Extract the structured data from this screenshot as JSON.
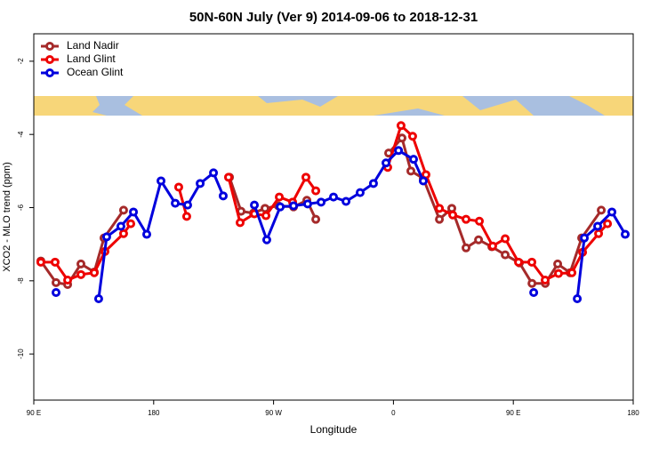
{
  "chart_data": {
    "type": "line",
    "title": "50N-60N July (Ver 9)   2014-09-06 to 2018-12-31",
    "x_label": "Longitude",
    "y_label": "XCO2 - MLO trend (ppm)",
    "xlim": [
      90,
      540
    ],
    "ylim": [
      -11.26,
      -1.25
    ],
    "xticks": [
      {
        "value": 90,
        "label": "90 E"
      },
      180,
      {
        "value": 270,
        "label": "90 W"
      },
      {
        "value": 360,
        "label": "0"
      },
      {
        "value": 450,
        "label": "90 E"
      },
      {
        "value": 540,
        "label": "180"
      }
    ],
    "yticks": [
      -2,
      -4,
      -6,
      -8,
      -10
    ],
    "legend": "top-left",
    "series": [
      {
        "name": "Land Nadir",
        "color": "#a52a2a",
        "x": [
          95.3,
          106.7,
          115.4,
          125.4,
          135.4,
          142.7,
          157.4,
          null,
          236.9,
          245.6,
          254.9,
          263.6,
          273.6,
          285,
          295,
          301.7,
          null,
          356.4,
          366.4,
          373.1,
          382.4,
          394.5,
          403.8,
          414.5,
          423.9,
          433.9,
          443.9,
          454.6,
          464,
          474,
          483.3,
          492.6,
          501.3,
          516
        ],
        "values": [
          -7.46,
          -8.05,
          -8.1,
          -7.54,
          -7.76,
          -6.83,
          -6.07,
          null,
          -5.17,
          -6.1,
          -6.15,
          -6.02,
          -5.95,
          -5.98,
          -5.8,
          -6.32,
          null,
          -4.51,
          -4.1,
          -5.0,
          -5.2,
          -6.32,
          -6.02,
          -7.1,
          -6.88,
          -7.07,
          -7.29,
          -7.51,
          -8.07,
          -8.07,
          -7.54,
          -7.78,
          -6.83,
          -6.07
        ]
      },
      {
        "name": "Land Glint",
        "color": "#ee0000",
        "x": [
          95.3,
          106,
          115.4,
          125.4,
          135.4,
          143.4,
          157.4,
          162.8,
          null,
          198.8,
          204.8,
          null,
          236.2,
          244.9,
          255.6,
          264.3,
          274.3,
          284.3,
          294.3,
          301.7,
          null,
          355.7,
          365.7,
          374.4,
          384.4,
          394.5,
          404.5,
          414.5,
          424.5,
          434.5,
          443.9,
          453.9,
          463.9,
          473.9,
          483.9,
          494,
          502,
          514,
          520.7
        ],
        "values": [
          -7.49,
          -7.49,
          -7.98,
          -7.83,
          -7.78,
          -7.2,
          -6.71,
          -6.44,
          null,
          -5.44,
          -6.24,
          null,
          -5.17,
          -6.41,
          -6.17,
          -6.22,
          -5.71,
          -5.85,
          -5.17,
          -5.54,
          null,
          -4.9,
          -3.76,
          -4.05,
          -5.1,
          -6.02,
          -6.2,
          -6.32,
          -6.37,
          -7.05,
          -6.85,
          -7.49,
          -7.49,
          -7.98,
          -7.8,
          -7.78,
          -7.22,
          -6.71,
          -6.44
        ]
      },
      {
        "name": "Ocean Glint",
        "color": "#0000dd",
        "x": [
          106.7,
          null,
          138.7,
          144.7,
          155.4,
          164.8,
          174.8,
          185.5,
          196.2,
          205.5,
          214.9,
          224.9,
          232.2,
          null,
          255.6,
          264.9,
          275,
          285,
          295.6,
          305.7,
          315,
          324.4,
          335,
          345,
          354.4,
          363.8,
          375.1,
          382.4,
          null,
          465.3,
          null,
          498,
          503.3,
          513.3,
          524,
          534
        ],
        "values": [
          -8.32,
          null,
          -8.49,
          -6.8,
          -6.51,
          -6.12,
          -6.73,
          -5.27,
          -5.88,
          -5.93,
          -5.34,
          -5.05,
          -5.68,
          null,
          -5.93,
          -6.88,
          -5.98,
          -5.95,
          -5.9,
          -5.85,
          -5.71,
          -5.83,
          -5.59,
          -5.34,
          -4.78,
          -4.44,
          -4.68,
          -5.27,
          null,
          -8.32,
          null,
          -8.49,
          -6.83,
          -6.51,
          -6.12,
          -6.73
        ]
      }
    ]
  }
}
